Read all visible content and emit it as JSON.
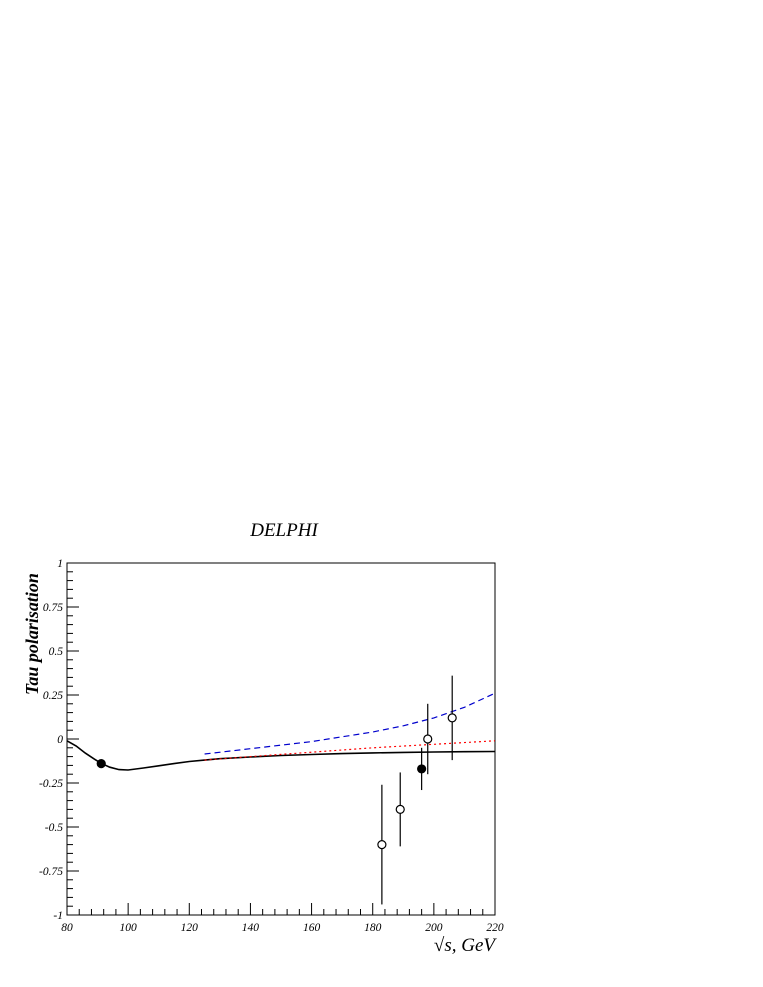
{
  "chart_data": {
    "type": "scatter",
    "title": "DELPHI",
    "xlabel": "√s, GeV",
    "ylabel": "Tau polarisation",
    "xlim": [
      80,
      220
    ],
    "ylim": [
      -1,
      1
    ],
    "x_ticks": [
      "80",
      "100",
      "120",
      "140",
      "160",
      "180",
      "200",
      "220"
    ],
    "y_ticks": [
      "1",
      "0.75",
      "0.5",
      "0.25",
      "0",
      "-0.25",
      "-0.5",
      "-0.75",
      "-1"
    ],
    "grid": false,
    "series": [
      {
        "style": "solid",
        "color": "#000000",
        "points": [
          [
            80,
            -0.01
          ],
          [
            83,
            -0.04
          ],
          [
            86,
            -0.08
          ],
          [
            89,
            -0.115
          ],
          [
            91.2,
            -0.138
          ],
          [
            94,
            -0.16
          ],
          [
            97,
            -0.174
          ],
          [
            100,
            -0.176
          ],
          [
            105,
            -0.165
          ],
          [
            110,
            -0.152
          ],
          [
            115,
            -0.14
          ],
          [
            120,
            -0.128
          ],
          [
            125,
            -0.12
          ],
          [
            130,
            -0.112
          ],
          [
            140,
            -0.102
          ],
          [
            150,
            -0.094
          ],
          [
            160,
            -0.088
          ],
          [
            170,
            -0.083
          ],
          [
            180,
            -0.079
          ],
          [
            190,
            -0.076
          ],
          [
            200,
            -0.074
          ],
          [
            210,
            -0.072
          ],
          [
            220,
            -0.071
          ]
        ]
      },
      {
        "style": "dashed",
        "color": "#0000cc",
        "points": [
          [
            125,
            -0.085
          ],
          [
            140,
            -0.055
          ],
          [
            160,
            -0.015
          ],
          [
            180,
            0.04
          ],
          [
            190,
            0.075
          ],
          [
            200,
            0.12
          ],
          [
            210,
            0.18
          ],
          [
            220,
            0.26
          ]
        ]
      },
      {
        "style": "dotted",
        "color": "#ff0000",
        "points": [
          [
            125,
            -0.12
          ],
          [
            140,
            -0.1
          ],
          [
            160,
            -0.075
          ],
          [
            180,
            -0.05
          ],
          [
            200,
            -0.03
          ],
          [
            220,
            -0.01
          ]
        ]
      }
    ],
    "data_points": [
      {
        "x": 91.2,
        "y": -0.14,
        "err": 0,
        "filled": true
      },
      {
        "x": 183,
        "y": -0.6,
        "err": 0.34,
        "filled": false
      },
      {
        "x": 189,
        "y": -0.4,
        "err": 0.21,
        "filled": false
      },
      {
        "x": 196,
        "y": -0.17,
        "err": 0.12,
        "filled": true
      },
      {
        "x": 198,
        "y": 0.0,
        "err": 0.2,
        "filled": false
      },
      {
        "x": 206,
        "y": 0.12,
        "err": 0.24,
        "filled": false
      }
    ]
  }
}
